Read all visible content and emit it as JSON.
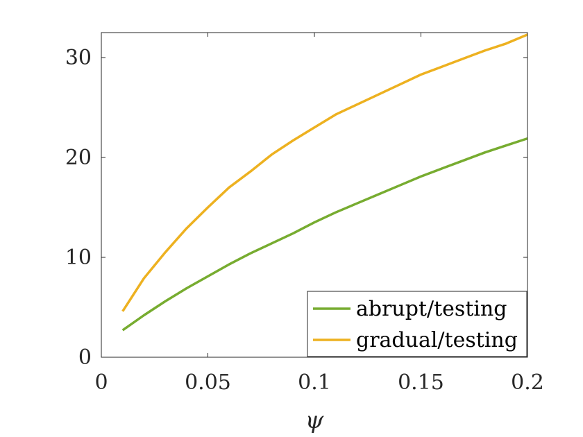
{
  "chart_data": {
    "type": "line",
    "title": "",
    "xlabel": "ψ",
    "ylabel": "",
    "xlim": [
      0,
      0.2
    ],
    "ylim": [
      0,
      32.5
    ],
    "xticks": [
      0,
      0.05,
      0.1,
      0.15,
      0.2
    ],
    "xtick_labels": [
      "0",
      "0.05",
      "0.1",
      "0.15",
      "0.2"
    ],
    "yticks": [
      0,
      10,
      20,
      30
    ],
    "ytick_labels": [
      "0",
      "10",
      "20",
      "30"
    ],
    "grid": false,
    "legend_position": "bottom-right",
    "series": [
      {
        "name": "abrupt/testing",
        "color": "#77AC30",
        "x": [
          0.01,
          0.02,
          0.03,
          0.04,
          0.05,
          0.06,
          0.07,
          0.08,
          0.09,
          0.1,
          0.11,
          0.12,
          0.13,
          0.14,
          0.15,
          0.16,
          0.17,
          0.18,
          0.19,
          0.2
        ],
        "y": [
          2.7,
          4.2,
          5.6,
          6.9,
          8.1,
          9.3,
          10.4,
          11.4,
          12.4,
          13.5,
          14.5,
          15.4,
          16.3,
          17.2,
          18.1,
          18.9,
          19.7,
          20.5,
          21.2,
          21.9
        ]
      },
      {
        "name": "gradual/testing",
        "color": "#EDB120",
        "x": [
          0.01,
          0.02,
          0.03,
          0.04,
          0.05,
          0.06,
          0.07,
          0.08,
          0.09,
          0.1,
          0.11,
          0.12,
          0.13,
          0.14,
          0.15,
          0.16,
          0.17,
          0.18,
          0.19,
          0.2
        ],
        "y": [
          4.6,
          7.9,
          10.5,
          12.9,
          15.0,
          17.0,
          18.6,
          20.3,
          21.7,
          23.0,
          24.3,
          25.3,
          26.3,
          27.3,
          28.3,
          29.1,
          29.9,
          30.7,
          31.4,
          32.3
        ]
      }
    ]
  }
}
